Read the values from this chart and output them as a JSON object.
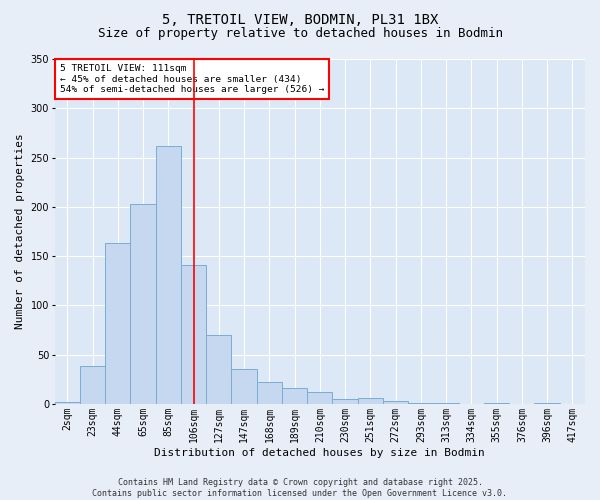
{
  "title1": "5, TRETOIL VIEW, BODMIN, PL31 1BX",
  "title2": "Size of property relative to detached houses in Bodmin",
  "xlabel": "Distribution of detached houses by size in Bodmin",
  "ylabel": "Number of detached properties",
  "categories": [
    "2sqm",
    "23sqm",
    "44sqm",
    "65sqm",
    "85sqm",
    "106sqm",
    "127sqm",
    "147sqm",
    "168sqm",
    "189sqm",
    "210sqm",
    "230sqm",
    "251sqm",
    "272sqm",
    "293sqm",
    "313sqm",
    "334sqm",
    "355sqm",
    "376sqm",
    "396sqm",
    "417sqm"
  ],
  "values": [
    2,
    38,
    163,
    203,
    262,
    141,
    70,
    35,
    22,
    16,
    12,
    5,
    6,
    3,
    1,
    1,
    0,
    1,
    0,
    1,
    0
  ],
  "bar_color": "#c5d8f0",
  "bar_edge_color": "#7aadd4",
  "red_line_x": 5.0,
  "annotation_text": "5 TRETOIL VIEW: 111sqm\n← 45% of detached houses are smaller (434)\n54% of semi-detached houses are larger (526) →",
  "ylim": [
    0,
    350
  ],
  "yticks": [
    0,
    50,
    100,
    150,
    200,
    250,
    300,
    350
  ],
  "plot_bg_color": "#dce8f5",
  "fig_bg_color": "#e8eef8",
  "footer": "Contains HM Land Registry data © Crown copyright and database right 2025.\nContains public sector information licensed under the Open Government Licence v3.0.",
  "title1_fontsize": 10,
  "title2_fontsize": 9,
  "xlabel_fontsize": 8,
  "ylabel_fontsize": 8,
  "tick_fontsize": 7,
  "footer_fontsize": 6
}
